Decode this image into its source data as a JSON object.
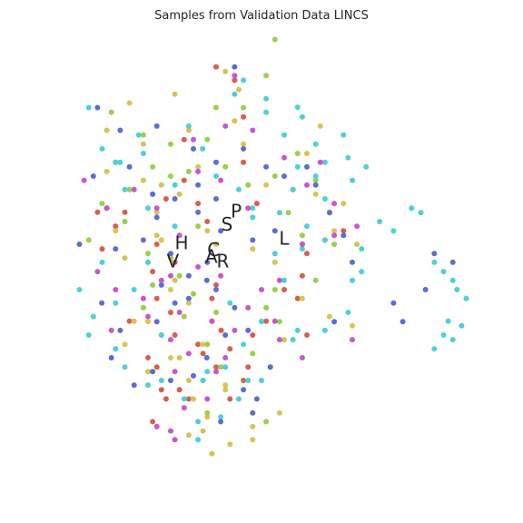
{
  "chart_data": {
    "type": "scatter",
    "title": "Samples from Validation Data LINCS",
    "xlabel": "",
    "ylabel": "",
    "xlim": [
      -60,
      60
    ],
    "ylim": [
      -60,
      60
    ],
    "grid": false,
    "legend": "none",
    "palette": [
      "#dc5d4b",
      "#d8c453",
      "#94d34a",
      "#4bd1d6",
      "#5a6ed2",
      "#cb55cf"
    ],
    "centroid_labels": [
      {
        "text": "P",
        "x": -6.0,
        "y": 13.0
      },
      {
        "text": "S",
        "x": -8.2,
        "y": 9.8
      },
      {
        "text": "H",
        "x": -19.0,
        "y": 5.4
      },
      {
        "text": "L",
        "x": 5.4,
        "y": 6.5
      },
      {
        "text": "V",
        "x": -21.1,
        "y": 1.1
      },
      {
        "text": "R",
        "x": -9.2,
        "y": 1.1
      },
      {
        "text": "C",
        "x": -11.4,
        "y": 3.8
      },
      {
        "text": "A",
        "x": -11.9,
        "y": 2.2
      }
    ],
    "series": [
      {
        "x": [
          -18.4,
          -4.3,
          -34.7,
          -39.0,
          -32.5,
          -18.4,
          -22.7,
          -15.1,
          -34.7,
          -12.9,
          -37.9,
          -24.9,
          -20.6,
          -25.9,
          -10.8,
          -24.9,
          -21.6,
          -11.8,
          -11.8,
          -23.8,
          -27.0,
          -24.9,
          -23.8,
          -31.4,
          -13.9,
          -15.1,
          -13.9,
          -20.6,
          -19.5,
          -17.3,
          -25.9,
          -22.7,
          -7.5,
          -4.3,
          -10.8,
          -7.5,
          -9.6,
          -2.1,
          -3.2,
          8.6,
          5.4,
          9.7,
          10.8,
          15.1,
          19.5,
          7.5,
          1.1,
          10.8,
          -4.3,
          -6.4,
          -1.1,
          -10.8
        ],
        "y": [
          30.3,
          24.9,
          24.9,
          13.0,
          13.0,
          20.6,
          16.2,
          15.1,
          9.7,
          10.8,
          4.3,
          5.4,
          1.1,
          -1.1,
          -4.3,
          -7.5,
          -10.8,
          -12.9,
          -7.5,
          -16.2,
          -21.6,
          -23.8,
          -29.2,
          -12.9,
          -20.6,
          -18.4,
          -27.0,
          -16.2,
          -29.2,
          -31.4,
          -36.8,
          -31.4,
          -31.4,
          -27.0,
          -23.8,
          -19.5,
          -15.1,
          -16.2,
          -23.8,
          -7.5,
          -5.4,
          -2.1,
          3.2,
          6.4,
          8.6,
          18.4,
          -12.9,
          -16.2,
          35.7,
          44.4,
          15.1,
          47.6
        ]
      },
      {
        "x": [
          -8.6,
          -20.6,
          -31.4,
          -36.8,
          -28.1,
          -36.8,
          -28.1,
          -19.5,
          -15.1,
          -23.8,
          -24.9,
          -34.7,
          -24.9,
          -23.8,
          -32.5,
          -27.0,
          -20.6,
          -12.9,
          -10.8,
          -21.6,
          -27.0,
          -32.5,
          -14.0,
          -17.3,
          -19.5,
          -27.0,
          -17.3,
          -16.2,
          -12.9,
          -13.9,
          -11.8,
          -7.5,
          -2.1,
          -8.6,
          2.1,
          4.3,
          -2.1,
          -8.6,
          1.1,
          0.0,
          9.7,
          16.2,
          21.6,
          5.4,
          -2.1,
          3.2,
          1.1,
          -4.3,
          10.8,
          12.9,
          19.5,
          14.0,
          17.3,
          22.7,
          -5.4,
          -6.4,
          -17.3,
          -21.6,
          -17.3,
          -30.3
        ],
        "y": [
          46.5,
          41.1,
          39.0,
          32.5,
          29.2,
          22.7,
          20.6,
          17.3,
          23.8,
          19.5,
          13.0,
          8.6,
          7.5,
          6.4,
          2.1,
          1.1,
          -3.2,
          8.6,
          5.4,
          -5.4,
          -13.0,
          -18.4,
          -18.4,
          -8.6,
          -21.6,
          -24.9,
          -27.0,
          -31.4,
          -35.7,
          -39.0,
          -44.4,
          -42.2,
          -38.0,
          -28.1,
          -23.8,
          -34.7,
          -41.1,
          -29.2,
          -9.7,
          -12.9,
          -7.5,
          -11.8,
          -14.0,
          -17.3,
          4.3,
          1.1,
          19.5,
          29.2,
          27.0,
          17.3,
          15.1,
          33.5,
          8.6,
          5.4,
          42.2,
          34.7,
          32.5,
          -21.6,
          -40.0,
          -12.9
        ]
      },
      {
        "x": [
          -35.7,
          -28.1,
          -21.6,
          -17.3,
          -25.9,
          -31.4,
          -37.9,
          -32.5,
          -41.1,
          -27.0,
          -21.6,
          -15.1,
          -19.5,
          -25.9,
          -28.1,
          -18.4,
          -16.2,
          -10.8,
          -12.9,
          -2.1,
          4.3,
          12.9,
          17.3,
          9.7,
          6.4,
          3.2,
          -3.2,
          -8.6,
          -12.9,
          -21.6,
          -25.9,
          -10.8,
          -4.3,
          1.1,
          8.6,
          12.9,
          3.2,
          1.1,
          -9.7,
          -12.9,
          1.1,
          3.2
        ],
        "y": [
          36.8,
          31.4,
          21.6,
          22.7,
          17.3,
          18.4,
          15.1,
          10.8,
          6.4,
          3.2,
          2.1,
          9.7,
          -2.1,
          -4.3,
          -9.7,
          -11.8,
          -6.4,
          -10.8,
          -18.4,
          -20.6,
          -13.0,
          -3.2,
          5.4,
          7.5,
          12.9,
          21.6,
          19.5,
          23.8,
          30.3,
          29.2,
          23.8,
          37.9,
          37.9,
          45.5,
          27.0,
          20.6,
          -5.4,
          -9.7,
          -23.8,
          -34.7,
          -36.8,
          54.1
        ]
      },
      {
        "x": [
          -41.1,
          -37.9,
          -33.6,
          -28.1,
          -32.5,
          -27.0,
          -20.6,
          -20.6,
          -27.0,
          -37.9,
          -43.3,
          -40.0,
          -34.7,
          -30.3,
          -34.7,
          -41.1,
          -32.5,
          -27.0,
          -23.8,
          -18.4,
          -15.1,
          -15.1,
          -9.7,
          -5.4,
          -3.2,
          -8.6,
          -13.9,
          -12.9,
          -4.3,
          -0.0,
          8.6,
          15.1,
          20.6,
          21.6,
          15.1,
          9.7,
          5.4,
          3.2,
          -2.1,
          -5.4,
          7.5,
          12.9,
          8.6,
          15.1,
          20.6,
          5.4,
          1.1,
          -6.4,
          -4.3,
          8.6,
          12.9,
          19.5,
          24.9,
          21.6,
          15.1,
          16.2,
          10.8,
          4.3,
          -2.1,
          -10.8,
          -14.0,
          -17.3,
          -29.2,
          -34.7,
          1.1,
          9.7,
          -23.8,
          -0.0,
          23.8,
          23.8,
          28.1,
          31.4,
          35.7,
          37.9,
          41.1,
          43.3,
          45.5,
          46.5,
          48.7,
          44.4,
          47.6,
          43.3,
          45.5,
          41.1,
          -7.5,
          7.5
        ],
        "y": [
          37.9,
          28.1,
          24.9,
          27.0,
          18.4,
          14.0,
          9.7,
          19.5,
          1.1,
          1.1,
          -5.4,
          -11.8,
          -8.6,
          -5.4,
          -19.5,
          -16.2,
          -23.8,
          -28.1,
          -27.0,
          -31.4,
          -36.8,
          -41.1,
          -35.7,
          -31.4,
          -27.0,
          -23.8,
          -27.0,
          -24.9,
          -18.4,
          -13.0,
          -15.1,
          -15.1,
          -10.8,
          -3.2,
          6.4,
          4.3,
          -3.2,
          3.2,
          11.8,
          18.4,
          18.4,
          21.6,
          23.8,
          24.9,
          26.0,
          31.4,
          36.8,
          41.1,
          44.4,
          38.0,
          29.2,
          31.4,
          23.8,
          20.6,
          16.2,
          13.0,
          9.7,
          12.9,
          14.0,
          21.6,
          28.1,
          33.5,
          31.4,
          24.9,
          40.0,
          35.7,
          -16.2,
          -27.0,
          -1.1,
          4.3,
          10.8,
          8.6,
          14.0,
          12.9,
          1.1,
          -1.1,
          -3.2,
          -5.4,
          -7.5,
          -12.9,
          -14.0,
          -16.2,
          -17.3,
          -19.5,
          -8.6,
          -17.3
        ]
      },
      {
        "x": [
          -39.0,
          -33.6,
          -24.9,
          -31.4,
          -40.0,
          -36.8,
          -43.3,
          -34.7,
          -28.1,
          -21.6,
          -15.1,
          -9.7,
          -12.9,
          -17.3,
          -20.6,
          -24.9,
          -33.6,
          -38.0,
          -35.7,
          -30.3,
          -25.9,
          -21.6,
          -16.2,
          -13.0,
          -8.6,
          -4.3,
          -2.1,
          2.1,
          -3.2,
          -6.4,
          -10.8,
          -13.0,
          -17.3,
          -23.8,
          -24.9,
          -20.6,
          -15.1,
          -10.8,
          -4.3,
          1.1,
          5.4,
          10.8,
          12.9,
          16.2,
          19.5,
          9.7,
          3.2,
          -2.1,
          -10.8,
          -16.2,
          -25.9,
          21.6,
          17.3,
          31.4,
          33.6,
          41.1,
          45.5,
          39.0,
          -6.4,
          -9.7,
          -1.1
        ],
        "y": [
          37.9,
          32.5,
          33.5,
          23.8,
          21.6,
          14.0,
          5.4,
          4.3,
          6.4,
          3.2,
          13.0,
          8.6,
          1.1,
          -2.1,
          -8.6,
          -13.0,
          -15.1,
          -8.6,
          -21.6,
          -28.1,
          -24.9,
          -27.0,
          -25.9,
          -21.6,
          -16.2,
          -29.2,
          -34.7,
          -23.8,
          -15.1,
          -9.7,
          -5.4,
          -3.2,
          -7.5,
          -4.3,
          11.8,
          16.2,
          19.5,
          24.9,
          28.1,
          23.8,
          21.6,
          23.8,
          19.5,
          12.9,
          7.5,
          5.4,
          8.6,
          6.4,
          16.2,
          28.1,
          17.3,
          1.1,
          -13.0,
          -8.6,
          -13.0,
          3.2,
          1.1,
          -5.4,
          47.6,
          -36.8,
          -31.4
        ]
      },
      {
        "x": [
          -42.2,
          -36.8,
          -30.3,
          -24.9,
          -19.5,
          -21.6,
          -28.1,
          -34.7,
          -39.0,
          -35.7,
          -27.0,
          -21.6,
          -17.3,
          -20.6,
          -12.9,
          -8.6,
          -11.8,
          -19.5,
          -23.8,
          -15.1,
          -9.7,
          -3.2,
          0.0,
          4.3,
          9.7,
          3.2,
          -3.2,
          -9.7,
          -15.1,
          -16.2,
          -8.6,
          -2.1,
          5.4,
          10.8,
          17.3,
          22.7,
          17.3,
          9.7,
          4.3,
          -6.4,
          -10.8,
          -18.4,
          -24.9,
          14.0,
          -6.4,
          -21.6,
          -20.6,
          21.6
        ],
        "y": [
          20.6,
          14.0,
          18.4,
          14.0,
          7.5,
          -2.1,
          -7.5,
          -5.4,
          -1.1,
          -15.1,
          -11.8,
          -17.3,
          -20.6,
          -24.9,
          -31.4,
          -21.6,
          -12.9,
          -10.8,
          -3.2,
          -0.0,
          -2.1,
          -9.7,
          -5.4,
          -17.3,
          -21.6,
          -12.9,
          14.0,
          20.6,
          22.7,
          30.3,
          33.5,
          32.5,
          26.0,
          19.5,
          15.1,
          9.7,
          7.5,
          5.4,
          -3.2,
          -15.1,
          -24.9,
          -33.5,
          -38.0,
          24.9,
          45.5,
          -39.0,
          -41.1,
          -17.3
        ]
      }
    ]
  }
}
